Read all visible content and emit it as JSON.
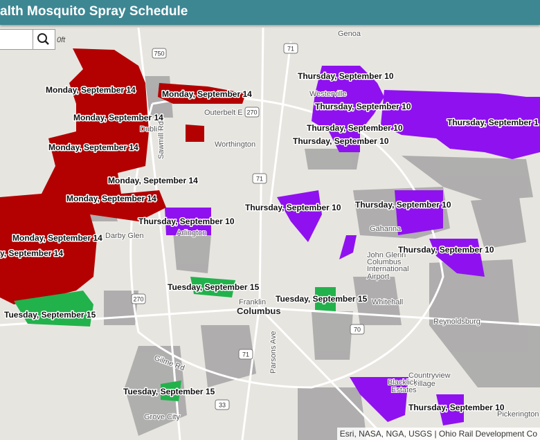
{
  "header": {
    "title": "alth Mosquito Spray Schedule"
  },
  "scale": "0ft",
  "map": {
    "places": [
      "Genoa",
      "Westerville",
      "Outerbelt E",
      "Worthington",
      "Dublin",
      "Sawmill Rd",
      "Darby Glen",
      "Arlington",
      "Gahanna",
      "John Glenn",
      "Columbus",
      "International",
      "Airport",
      "Franklin",
      "Columbus",
      "Whitehall",
      "Reynoldsburg",
      "Parsons Ave",
      "Gilme Rd",
      "Grove City",
      "Countryview",
      "Village",
      "Blacklick",
      "Estates",
      "Pickerington"
    ],
    "shields": [
      "750",
      "71",
      "270",
      "71",
      "270",
      "70",
      "71",
      "33"
    ],
    "zones": [
      "Monday, September 14",
      "Monday, September 14",
      "Monday, September 14",
      "Monday, September 14",
      "Monday, September 14",
      "Monday, September 14",
      "Thursday, September 10",
      "Monday, September 14",
      "y, September 14",
      "Tuesday, September 15",
      "Tuesday, September 15",
      "Tuesday, September 15",
      "Tuesday, September 15",
      "Thursday, September 10",
      "Thursday, September 10",
      "Thursday, September 10",
      "Thursday, September 10",
      "Thursday, September 1",
      "Thursday, September 10",
      "Thursday, September 10",
      "Thursday, September 10",
      "Thursday, September 10"
    ]
  },
  "attribution": "Esri, NASA, NGA, USGS | Ohio Rail Development Co"
}
